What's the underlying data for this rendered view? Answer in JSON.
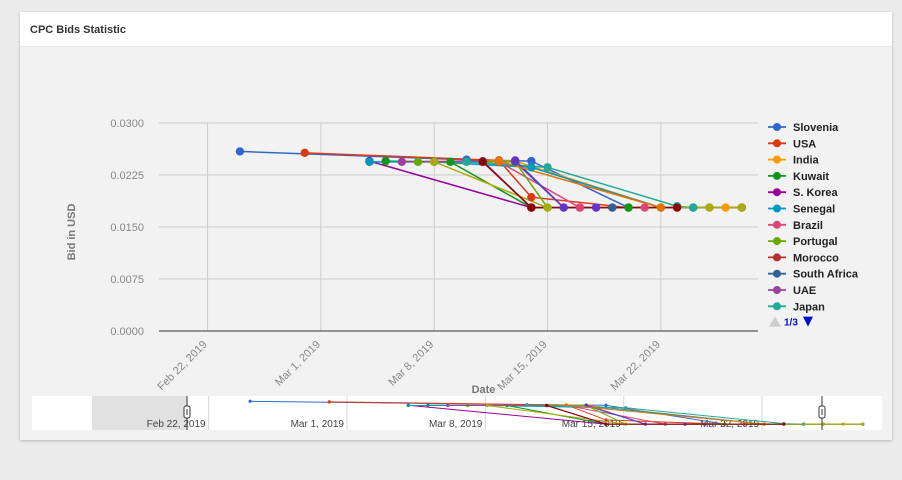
{
  "card": {
    "title": "CPC Bids Statistic"
  },
  "colors": {
    "Slovenia": "#3366cc",
    "USA": "#dc3912",
    "India": "#ff9900",
    "Kuwait": "#109618",
    "S. Korea": "#990099",
    "Senegal": "#0099c6",
    "Brazil": "#dd4477",
    "Portugal": "#66aa00",
    "Morocco": "#b82e2e",
    "South Africa": "#316395",
    "UAE": "#994499",
    "Japan": "#22aa99",
    "Extra1": "#aaaa11",
    "Extra2": "#6633cc",
    "Extra3": "#e67300",
    "Extra4": "#8b0707"
  },
  "legend": {
    "page": "1/3"
  },
  "navigator": {
    "labels": [
      "Feb 22, 2019",
      "Mar 1, 2019",
      "Mar 8, 2019",
      "Mar 15, 2019",
      "Mar 22, 2019"
    ]
  },
  "chart_data": {
    "type": "line",
    "title": "",
    "xlabel": "Date",
    "ylabel": "Bid in USD",
    "ylim": [
      0,
      0.03
    ],
    "yticks": [
      "0.0000",
      "0.0075",
      "0.0150",
      "0.0225",
      "0.0300"
    ],
    "xticks": [
      "Feb 22, 2019",
      "Mar 1, 2019",
      "Mar 8, 2019",
      "Mar 15, 2019",
      "Mar 22, 2019"
    ],
    "xlim": [
      "2019-02-19",
      "2019-03-28"
    ],
    "grid": true,
    "legend_position": "right",
    "series": [
      {
        "name": "Slovenia",
        "points": [
          [
            "2019-02-24",
            0.0259
          ],
          [
            "2019-03-10",
            0.0247
          ],
          [
            "2019-03-14",
            0.0245
          ],
          [
            "2019-03-20",
            0.0178
          ],
          [
            "2019-03-27",
            0.0178
          ]
        ]
      },
      {
        "name": "USA",
        "points": [
          [
            "2019-02-28",
            0.0257
          ],
          [
            "2019-03-12",
            0.0246
          ],
          [
            "2019-03-14",
            0.0193
          ],
          [
            "2019-03-20",
            0.0178
          ],
          [
            "2019-03-27",
            0.0178
          ]
        ]
      },
      {
        "name": "India",
        "points": [
          [
            "2019-03-04",
            0.0244
          ],
          [
            "2019-03-13",
            0.0245
          ],
          [
            "2019-03-22",
            0.0178
          ],
          [
            "2019-03-26",
            0.0178
          ]
        ]
      },
      {
        "name": "Kuwait",
        "points": [
          [
            "2019-03-05",
            0.0245
          ],
          [
            "2019-03-09",
            0.0244
          ],
          [
            "2019-03-14",
            0.0178
          ],
          [
            "2019-03-20",
            0.0178
          ],
          [
            "2019-03-27",
            0.0178
          ]
        ]
      },
      {
        "name": "S. Korea",
        "points": [
          [
            "2019-03-04",
            0.0245
          ],
          [
            "2019-03-14",
            0.0178
          ],
          [
            "2019-03-17",
            0.0178
          ]
        ]
      },
      {
        "name": "Senegal",
        "points": [
          [
            "2019-03-04",
            0.0244
          ],
          [
            "2019-03-08",
            0.0244
          ],
          [
            "2019-03-14",
            0.0236
          ],
          [
            "2019-03-22",
            0.0178
          ],
          [
            "2019-03-24",
            0.0178
          ]
        ]
      },
      {
        "name": "Brazil",
        "points": [
          [
            "2019-03-12",
            0.0244
          ],
          [
            "2019-03-17",
            0.0178
          ],
          [
            "2019-03-21",
            0.0178
          ]
        ]
      },
      {
        "name": "Portugal",
        "points": [
          [
            "2019-03-07",
            0.0244
          ],
          [
            "2019-03-13",
            0.0244
          ],
          [
            "2019-03-15",
            0.0178
          ],
          [
            "2019-03-25",
            0.0178
          ]
        ]
      },
      {
        "name": "Morocco",
        "points": [
          [
            "2019-03-11",
            0.0244
          ],
          [
            "2019-03-14",
            0.0178
          ],
          [
            "2019-03-19",
            0.0178
          ],
          [
            "2019-03-23",
            0.0178
          ]
        ]
      },
      {
        "name": "South Africa",
        "points": [
          [
            "2019-03-13",
            0.0244
          ],
          [
            "2019-03-16",
            0.0178
          ],
          [
            "2019-03-19",
            0.0178
          ],
          [
            "2019-03-24",
            0.0178
          ]
        ]
      },
      {
        "name": "UAE",
        "points": [
          [
            "2019-03-06",
            0.0244
          ],
          [
            "2019-03-11",
            0.0245
          ],
          [
            "2019-03-14",
            0.0178
          ],
          [
            "2019-03-18",
            0.0178
          ]
        ]
      },
      {
        "name": "Japan",
        "points": [
          [
            "2019-03-10",
            0.0244
          ],
          [
            "2019-03-15",
            0.0236
          ],
          [
            "2019-03-23",
            0.018
          ],
          [
            "2019-03-24",
            0.0178
          ]
        ]
      },
      {
        "name": "",
        "points": [
          [
            "2019-03-08",
            0.0244
          ],
          [
            "2019-03-15",
            0.0178
          ],
          [
            "2019-03-25",
            0.0178
          ],
          [
            "2019-03-27",
            0.0178
          ]
        ]
      },
      {
        "name": "",
        "points": [
          [
            "2019-03-13",
            0.0246
          ],
          [
            "2019-03-16",
            0.0178
          ],
          [
            "2019-03-18",
            0.0178
          ]
        ]
      },
      {
        "name": "",
        "points": [
          [
            "2019-03-12",
            0.0245
          ],
          [
            "2019-03-22",
            0.0178
          ]
        ]
      },
      {
        "name": "",
        "points": [
          [
            "2019-03-11",
            0.0244
          ],
          [
            "2019-03-14",
            0.0178
          ],
          [
            "2019-03-23",
            0.0178
          ]
        ]
      }
    ]
  }
}
